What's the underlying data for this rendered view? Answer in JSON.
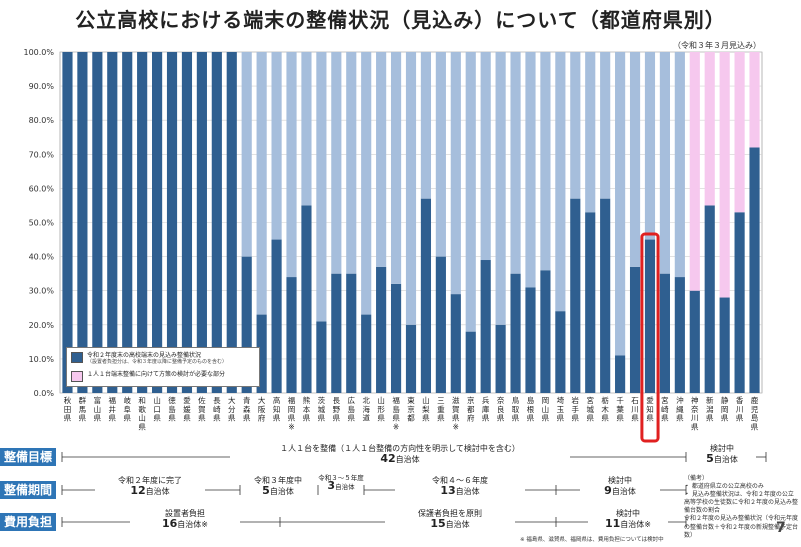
{
  "page": {
    "title": "公立高校における端末の整備状況（見込み）について（都道府県別）",
    "date_note": "（令和３年３月見込み）",
    "page_number": "7"
  },
  "colors": {
    "dark_bar": "#2f5f90",
    "light_bar": "#a6bedc",
    "pink_bar": "#f6c8ee",
    "highlight": "#e02020",
    "label_bg": "#2e75b6"
  },
  "legend": {
    "item1": "令和２年度末の高校端末の見込み整備状況",
    "item1_sub": "（設置者負担分は、令和３年度以降に整備予定のものを含む）",
    "item2": "１人１台端末整備に向けて方策の検討が必要な部分"
  },
  "chart_data": {
    "type": "bar",
    "stacked": true,
    "ylim": [
      0,
      100
    ],
    "yticks": [
      "0.0%",
      "10.0%",
      "20.0%",
      "30.0%",
      "40.0%",
      "50.0%",
      "60.0%",
      "70.0%",
      "80.0%",
      "90.0%",
      "100.0%"
    ],
    "categories": [
      "秋田県",
      "群馬県",
      "富山県",
      "福井県",
      "岐阜県",
      "和歌山県",
      "山口県",
      "徳島県",
      "愛媛県",
      "佐賀県",
      "長崎県",
      "大分県",
      "青森県",
      "大阪府",
      "高知県",
      "福岡県※",
      "熊本県",
      "茨城県",
      "長野県",
      "広島県",
      "北海道",
      "山形県",
      "福島県※",
      "東京都",
      "山梨県",
      "三重県",
      "滋賀県※",
      "京都府",
      "兵庫県",
      "奈良県",
      "鳥取県",
      "島根県",
      "岡山県",
      "埼玉県",
      "岩手県",
      "宮城県",
      "栃木県",
      "千葉県",
      "石川県",
      "愛知県",
      "宮崎県",
      "沖縄県",
      "神奈川県",
      "新潟県",
      "静岡県",
      "香川県",
      "鹿児島県"
    ],
    "series": [
      {
        "values": [
          100,
          100,
          100,
          100,
          100,
          100,
          100,
          100,
          100,
          100,
          100,
          100,
          40,
          23,
          45,
          34,
          55,
          21,
          35,
          35,
          23,
          37,
          32,
          20,
          57,
          40,
          29,
          18,
          39,
          20,
          35,
          31,
          36,
          24,
          57,
          53,
          57,
          11,
          37,
          45,
          35,
          34,
          30,
          55,
          28,
          53,
          72
        ]
      },
      {
        "values": [
          0,
          0,
          0,
          0,
          0,
          0,
          0,
          0,
          0,
          0,
          0,
          0,
          60,
          77,
          55,
          66,
          45,
          79,
          65,
          65,
          77,
          63,
          68,
          80,
          43,
          60,
          71,
          82,
          61,
          80,
          65,
          69,
          64,
          76,
          43,
          47,
          43,
          89,
          63,
          55,
          65,
          66,
          0,
          0,
          0,
          0,
          0
        ]
      },
      {
        "values": [
          0,
          0,
          0,
          0,
          0,
          0,
          0,
          0,
          0,
          0,
          0,
          0,
          0,
          0,
          0,
          0,
          0,
          0,
          0,
          0,
          0,
          0,
          0,
          0,
          0,
          0,
          0,
          0,
          0,
          0,
          0,
          0,
          0,
          0,
          0,
          0,
          0,
          0,
          0,
          0,
          0,
          0,
          70,
          45,
          72,
          47,
          28
        ]
      }
    ],
    "highlight_category": "愛知県"
  },
  "timeline": {
    "rows": [
      {
        "label": "整備目標",
        "segments": [
          {
            "text": "１人１台を整備（１人１台整備の方向性を明示して検討中を含む）",
            "count": "42",
            "unit": "自治体"
          },
          {
            "text": "検討中",
            "count": "5",
            "unit": "自治体"
          }
        ]
      },
      {
        "label": "整備期間",
        "segments": [
          {
            "text": "令和２年度に完了",
            "count": "12",
            "unit": "自治体"
          },
          {
            "text": "令和３年度中",
            "count": "5",
            "unit": "自治体"
          },
          {
            "text": "令和３～５年度",
            "count": "3",
            "unit": "自治体"
          },
          {
            "text": "令和４～６年度",
            "count": "13",
            "unit": "自治体"
          },
          {
            "text": "検討中",
            "count": "9",
            "unit": "自治体"
          }
        ]
      },
      {
        "label": "費用負担",
        "segments": [
          {
            "text": "設置者負担",
            "count": "16",
            "unit": "自治体※"
          },
          {
            "text": "保護者負担を原則",
            "count": "15",
            "unit": "自治体"
          },
          {
            "text": "検討中",
            "count": "11",
            "unit": "自治体※"
          }
        ]
      }
    ]
  },
  "notes": {
    "heading": "（備考）",
    "line1": "・ 都道府県立の公立高校のみ",
    "line2": "・ 見込み整備状況は、令和２年度の公立高等学校の生徒数に令和２年度の見込み整備台数の割合",
    "line3": "令和２年度の見込み整備状況（令和元年度の整備台数＋令和２年度の新規整備予定台数）",
    "footnote": "※ 福島県、滋賀県、福岡県は、費用負担については検討中"
  }
}
